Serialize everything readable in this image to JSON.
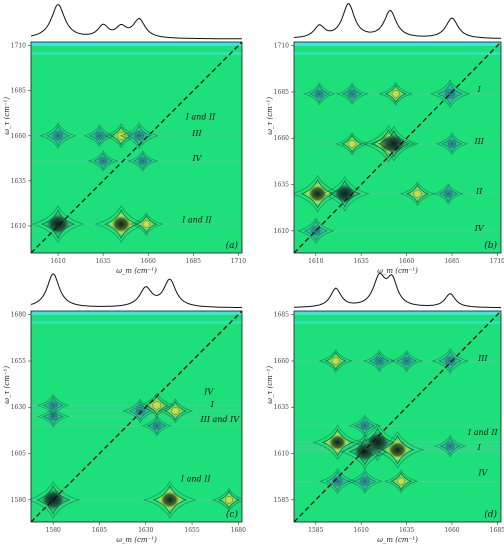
{
  "colors": {
    "background": "#1ee07a",
    "contour": "#0f5f3a",
    "contour_blue": "#1a6a86",
    "peak_dark": "#0b1f1a",
    "peak_yellow": "#d6e04a",
    "cyan_band": "#43e6ea",
    "strip_line": "#111111",
    "diagonal": "#111111",
    "frame": "#1a1a1a"
  },
  "chart_data": [
    {
      "type": "heatmap",
      "panel_label": "(a)",
      "xlabel": "ω_m (cm⁻¹)",
      "ylabel": "ω_τ (cm⁻¹)",
      "xlim": [
        1595,
        1712
      ],
      "ylim": [
        1595,
        1712
      ],
      "xticks": [
        1610,
        1635,
        1660,
        1685,
        1710
      ],
      "yticks": [
        1610,
        1635,
        1660,
        1685,
        1710
      ],
      "x_tick_labels": [
        "1610",
        "1635",
        "1660",
        "1685",
        "1710"
      ],
      "y_tick_labels": [
        "1610",
        "1635",
        "1660",
        "1685",
        "1710"
      ],
      "diagonal": true,
      "linear_spectrum": {
        "peaks": [
          1610,
          1635,
          1645,
          1655
        ],
        "heights": [
          1.0,
          0.35,
          0.3,
          0.55
        ],
        "widths": [
          4.5,
          3.5,
          3.5,
          4
        ]
      },
      "peaks": [
        {
          "x": 1610,
          "y": 1611,
          "amp": 1.0,
          "kind": "dark"
        },
        {
          "x": 1645,
          "y": 1611,
          "amp": 1.0,
          "kind": "dark_yellow"
        },
        {
          "x": 1659,
          "y": 1611,
          "amp": 0.4,
          "kind": "yellow"
        },
        {
          "x": 1610,
          "y": 1660,
          "amp": 0.5,
          "kind": "blue"
        },
        {
          "x": 1633,
          "y": 1660,
          "amp": 0.35,
          "kind": "blue"
        },
        {
          "x": 1645,
          "y": 1660,
          "amp": 0.45,
          "kind": "yellow"
        },
        {
          "x": 1655,
          "y": 1660,
          "amp": 0.55,
          "kind": "blue"
        },
        {
          "x": 1635,
          "y": 1646,
          "amp": 0.3,
          "kind": "blue"
        },
        {
          "x": 1657,
          "y": 1646,
          "amp": 0.3,
          "kind": "blue"
        }
      ],
      "annotations": [
        {
          "text": "I and II",
          "x": 1689,
          "y": 1669
        },
        {
          "text": "III",
          "x": 1687,
          "y": 1660
        },
        {
          "text": "IV",
          "x": 1687,
          "y": 1646
        },
        {
          "text": "I and II",
          "x": 1687,
          "y": 1612
        }
      ]
    },
    {
      "type": "heatmap",
      "panel_label": "(b)",
      "xlabel": "ω_m (cm⁻¹)",
      "ylabel": "ω_τ (cm⁻¹)",
      "xlim": [
        1598,
        1712
      ],
      "ylim": [
        1598,
        1712
      ],
      "xticks": [
        1610,
        1635,
        1660,
        1685,
        1710
      ],
      "yticks": [
        1610,
        1635,
        1660,
        1685,
        1710
      ],
      "x_tick_labels": [
        "1610",
        "1635",
        "1660",
        "1685",
        "1710"
      ],
      "y_tick_labels": [
        "1610",
        "1635",
        "1660",
        "1685",
        "1710"
      ],
      "diagonal": true,
      "linear_spectrum": {
        "peaks": [
          1612,
          1628,
          1651,
          1685
        ],
        "heights": [
          0.35,
          1.0,
          0.8,
          0.6
        ],
        "widths": [
          3.5,
          4,
          4,
          4
        ]
      },
      "peaks": [
        {
          "x": 1610,
          "y": 1610,
          "amp": 0.5,
          "kind": "blue"
        },
        {
          "x": 1611,
          "y": 1630,
          "amp": 1.0,
          "kind": "dark_yellow"
        },
        {
          "x": 1626,
          "y": 1630,
          "amp": 0.9,
          "kind": "dark"
        },
        {
          "x": 1666,
          "y": 1630,
          "amp": 0.45,
          "kind": "yellow"
        },
        {
          "x": 1683,
          "y": 1630,
          "amp": 0.3,
          "kind": "blue"
        },
        {
          "x": 1650,
          "y": 1657,
          "amp": 1.0,
          "kind": "dark_yellow"
        },
        {
          "x": 1653,
          "y": 1657,
          "amp": 0.9,
          "kind": "dark"
        },
        {
          "x": 1630,
          "y": 1657,
          "amp": 0.4,
          "kind": "yellow"
        },
        {
          "x": 1685,
          "y": 1657,
          "amp": 0.35,
          "kind": "blue"
        },
        {
          "x": 1612,
          "y": 1684,
          "amp": 0.35,
          "kind": "blue"
        },
        {
          "x": 1630,
          "y": 1684,
          "amp": 0.35,
          "kind": "blue"
        },
        {
          "x": 1654,
          "y": 1684,
          "amp": 0.4,
          "kind": "yellow"
        },
        {
          "x": 1684,
          "y": 1684,
          "amp": 0.6,
          "kind": "blue"
        }
      ],
      "annotations": [
        {
          "text": "I",
          "x": 1700,
          "y": 1685
        },
        {
          "text": "III",
          "x": 1700,
          "y": 1657
        },
        {
          "text": "II",
          "x": 1700,
          "y": 1630
        },
        {
          "text": "IV",
          "x": 1700,
          "y": 1610
        }
      ]
    },
    {
      "type": "heatmap",
      "panel_label": "(c)",
      "xlabel": "ω_m (cm⁻¹)",
      "ylabel": "ω_τ (cm⁻¹)",
      "xlim": [
        1568,
        1682
      ],
      "ylim": [
        1568,
        1682
      ],
      "xticks": [
        1580,
        1605,
        1630,
        1655,
        1680
      ],
      "yticks": [
        1580,
        1605,
        1630,
        1655,
        1680
      ],
      "x_tick_labels": [
        "1580",
        "1605",
        "1630",
        "1655",
        "1680"
      ],
      "y_tick_labels": [
        "1580",
        "1605",
        "1630",
        "1655",
        "1680"
      ],
      "diagonal": true,
      "linear_spectrum": {
        "peaks": [
          1580,
          1630,
          1643
        ],
        "heights": [
          1.0,
          0.55,
          0.8
        ],
        "widths": [
          4,
          4,
          4
        ]
      },
      "peaks": [
        {
          "x": 1580,
          "y": 1580,
          "amp": 1.0,
          "kind": "dark"
        },
        {
          "x": 1643,
          "y": 1580,
          "amp": 1.0,
          "kind": "dark_yellow"
        },
        {
          "x": 1675,
          "y": 1580,
          "amp": 0.4,
          "kind": "yellow"
        },
        {
          "x": 1580,
          "y": 1625,
          "amp": 0.35,
          "kind": "blue"
        },
        {
          "x": 1580,
          "y": 1631,
          "amp": 0.35,
          "kind": "blue"
        },
        {
          "x": 1627,
          "y": 1628,
          "amp": 0.45,
          "kind": "blue"
        },
        {
          "x": 1636,
          "y": 1631,
          "amp": 0.5,
          "kind": "yellow"
        },
        {
          "x": 1646,
          "y": 1628,
          "amp": 0.45,
          "kind": "yellow"
        },
        {
          "x": 1636,
          "y": 1620,
          "amp": 0.3,
          "kind": "blue"
        }
      ],
      "annotations": [
        {
          "text": "IV",
          "x": 1664,
          "y": 1637
        },
        {
          "text": "I",
          "x": 1666,
          "y": 1630
        },
        {
          "text": "III and IV",
          "x": 1670,
          "y": 1622
        },
        {
          "text": "I and II",
          "x": 1657,
          "y": 1590
        }
      ]
    },
    {
      "type": "heatmap",
      "panel_label": "(d)",
      "xlabel": "ω_m (cm⁻¹)",
      "ylabel": "ω_τ (cm⁻¹)",
      "xlim": [
        1573,
        1687
      ],
      "ylim": [
        1573,
        1687
      ],
      "xticks": [
        1585,
        1610,
        1635,
        1660,
        1685
      ],
      "yticks": [
        1585,
        1610,
        1635,
        1660,
        1685
      ],
      "x_tick_labels": [
        "1585",
        "1610",
        "1635",
        "1660",
        "1685"
      ],
      "y_tick_labels": [
        "1585",
        "1610",
        "1635",
        "1660",
        "1685"
      ],
      "diagonal": true,
      "linear_spectrum": {
        "peaks": [
          1596,
          1620,
          1627,
          1659
        ],
        "heights": [
          0.55,
          0.85,
          0.75,
          0.4
        ],
        "widths": [
          3.5,
          4,
          3.5,
          3.5
        ]
      },
      "peaks": [
        {
          "x": 1597,
          "y": 1616,
          "amp": 0.9,
          "kind": "dark_yellow"
        },
        {
          "x": 1612,
          "y": 1611,
          "amp": 0.9,
          "kind": "dark"
        },
        {
          "x": 1619,
          "y": 1616,
          "amp": 1.0,
          "kind": "dark"
        },
        {
          "x": 1630,
          "y": 1612,
          "amp": 1.0,
          "kind": "dark_yellow"
        },
        {
          "x": 1659,
          "y": 1614,
          "amp": 0.35,
          "kind": "blue"
        },
        {
          "x": 1597,
          "y": 1595,
          "amp": 0.5,
          "kind": "blue"
        },
        {
          "x": 1612,
          "y": 1595,
          "amp": 0.45,
          "kind": "blue"
        },
        {
          "x": 1632,
          "y": 1595,
          "amp": 0.4,
          "kind": "yellow"
        },
        {
          "x": 1596,
          "y": 1660,
          "amp": 0.4,
          "kind": "yellow"
        },
        {
          "x": 1620,
          "y": 1660,
          "amp": 0.35,
          "kind": "blue"
        },
        {
          "x": 1635,
          "y": 1660,
          "amp": 0.35,
          "kind": "blue"
        },
        {
          "x": 1659,
          "y": 1660,
          "amp": 0.5,
          "kind": "blue"
        },
        {
          "x": 1612,
          "y": 1625,
          "amp": 0.35,
          "kind": "blue"
        }
      ],
      "annotations": [
        {
          "text": "III",
          "x": 1677,
          "y": 1660
        },
        {
          "text": "I and II",
          "x": 1677,
          "y": 1620
        },
        {
          "text": "I",
          "x": 1675,
          "y": 1612
        },
        {
          "text": "IV",
          "x": 1677,
          "y": 1598
        }
      ]
    }
  ]
}
